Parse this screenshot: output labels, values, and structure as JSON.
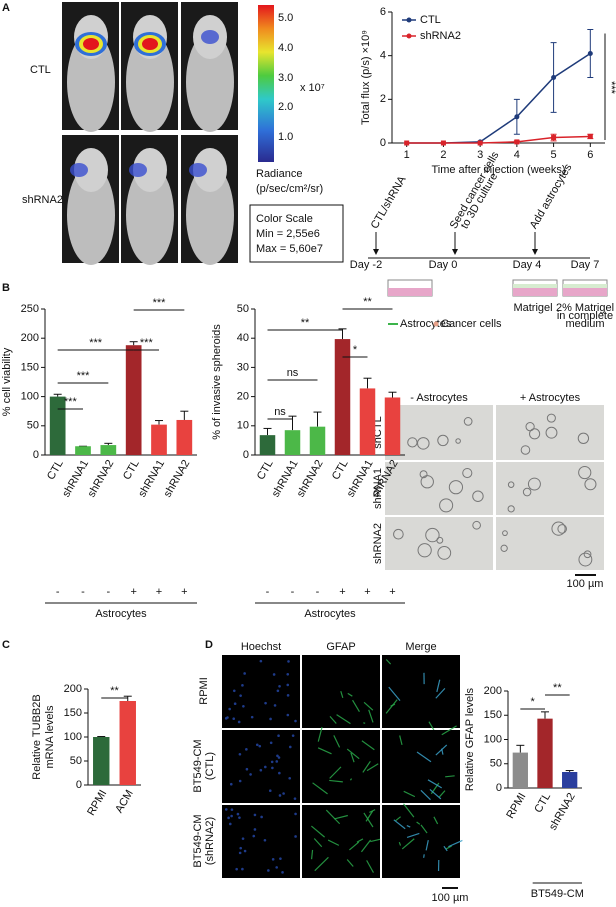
{
  "figure": {
    "panel_labels": [
      "A",
      "B",
      "C",
      "D"
    ],
    "panel_a": {
      "rows": [
        "CTL",
        "shRNA2"
      ],
      "colorbar_ticks": [
        "5.0",
        "4.0",
        "3.0",
        "2.0",
        "1.0"
      ],
      "colorbar_multiplier": "x 10⁷",
      "colorbar_label": [
        "Radiance",
        "(p/sec/cm²/sr)"
      ],
      "color_scale": [
        "Color Scale",
        "Min = 2,55e6",
        "Max = 5,60e7"
      ]
    },
    "schematic": {
      "steps": [
        [
          "CTL/shRNA"
        ],
        [
          "Seed cancer cells",
          "to 3D culture"
        ],
        [
          "Add astrocytes"
        ]
      ],
      "days": [
        "Day -2",
        "Day 0",
        "Day 4",
        "Day 7"
      ],
      "matrigel": "Matrigel",
      "medium": [
        "2% Matrigel",
        "in complete",
        "medium"
      ],
      "legend": [
        "Astrocytes",
        "Cancer cells"
      ]
    },
    "spheroid_images": {
      "columns": [
        "- Astrocytes",
        "+ Astrocytes"
      ],
      "rows": [
        "shCTL",
        "shRNA1",
        "shRNA2"
      ],
      "scale_bar": "100 µm"
    },
    "if_images": {
      "columns": [
        "Hoechst",
        "GFAP",
        "Merge"
      ],
      "rows": [
        [
          "RPMI"
        ],
        [
          "BT549-CM",
          "(CTL)"
        ],
        [
          "BT549-CM",
          "(shRNA2)"
        ]
      ],
      "scale_bar": "100 µm"
    }
  },
  "chart_data": [
    {
      "type": "line",
      "xlabel": "Time after injection (weeks)",
      "ylabel": "Total flux (p/s) ×10⁹",
      "x": [
        1,
        2,
        3,
        4,
        5,
        6
      ],
      "xlim": [
        0.6,
        6.4
      ],
      "xticks": [
        1,
        2,
        3,
        4,
        5,
        6
      ],
      "ylim": [
        0,
        6
      ],
      "yticks": [
        0,
        2,
        4,
        6
      ],
      "legend": "upper left",
      "annotation": "***",
      "series": [
        {
          "name": "CTL",
          "color": "#1f3b7a",
          "marker": "circle",
          "values": [
            0,
            0,
            0.05,
            1.2,
            3.0,
            4.1
          ],
          "errors": [
            0,
            0,
            0,
            0.8,
            1.6,
            1.1
          ]
        },
        {
          "name": "shRNA2",
          "color": "#d9232a",
          "marker": "square",
          "values": [
            0,
            0,
            0,
            0.05,
            0.25,
            0.3
          ],
          "errors": [
            0,
            0,
            0,
            0.05,
            0.15,
            0.1
          ]
        }
      ]
    },
    {
      "type": "bar",
      "ylabel": [
        "% cell viability"
      ],
      "categories": [
        "CTL",
        "shRNA1",
        "shRNA2",
        "CTL",
        "shRNA1",
        "shRNA2"
      ],
      "values": [
        100,
        15,
        17,
        188,
        52,
        60
      ],
      "errors": [
        4,
        0,
        3,
        6,
        7,
        15
      ],
      "colors": [
        "#2d6a3a",
        "#4cb848",
        "#4cb848",
        "#a3262a",
        "#e8423f",
        "#e8423f"
      ],
      "ylim": [
        0,
        250
      ],
      "yticks": [
        0,
        50,
        100,
        150,
        200,
        250
      ],
      "astrocytes": [
        "-",
        "-",
        "-",
        "+",
        "+",
        "+"
      ],
      "group_label": "Astrocytes",
      "annotations": [
        "***",
        "***",
        "***",
        "***",
        "***"
      ]
    },
    {
      "type": "bar",
      "ylabel": [
        "% of invasive spheroids"
      ],
      "categories": [
        "CTL",
        "shRNA1",
        "shRNA2",
        "CTL",
        "shRNA1",
        "shRNA2"
      ],
      "values": [
        6.8,
        8.5,
        9.7,
        39.7,
        22.8,
        19.7
      ],
      "errors": [
        2.3,
        4.8,
        5,
        3.5,
        3.5,
        1.8
      ],
      "colors": [
        "#2d6a3a",
        "#4cb848",
        "#4cb848",
        "#a3262a",
        "#e8423f",
        "#e8423f"
      ],
      "ylim": [
        0,
        50
      ],
      "yticks": [
        0,
        10,
        20,
        30,
        40,
        50
      ],
      "astrocytes": [
        "-",
        "-",
        "-",
        "+",
        "+",
        "+"
      ],
      "group_label": "Astrocytes",
      "annotations": [
        "ns",
        "ns",
        "**",
        "*",
        "**"
      ]
    },
    {
      "type": "bar",
      "ylabel": [
        "Relative TUBB2B",
        "mRNA levels"
      ],
      "categories": [
        "RPMI",
        "ACM"
      ],
      "values": [
        100,
        175
      ],
      "errors": [
        1,
        10
      ],
      "colors": [
        "#2d6a3a",
        "#e8423f"
      ],
      "ylim": [
        0,
        200
      ],
      "yticks": [
        0,
        50,
        100,
        150,
        200
      ],
      "annotations": [
        "**"
      ]
    },
    {
      "type": "bar",
      "ylabel": [
        "Relative GFAP levels"
      ],
      "categories": [
        "RPMI",
        "CTL",
        "shRNA2"
      ],
      "values": [
        73,
        143,
        33
      ],
      "errors": [
        15,
        14,
        3
      ],
      "colors": [
        "#8c8c8c",
        "#a3262a",
        "#2b3f9e"
      ],
      "ylim": [
        0,
        200
      ],
      "yticks": [
        0,
        50,
        100,
        150,
        200
      ],
      "group_label": "BT549-CM",
      "annotations": [
        "*",
        "**"
      ]
    }
  ]
}
